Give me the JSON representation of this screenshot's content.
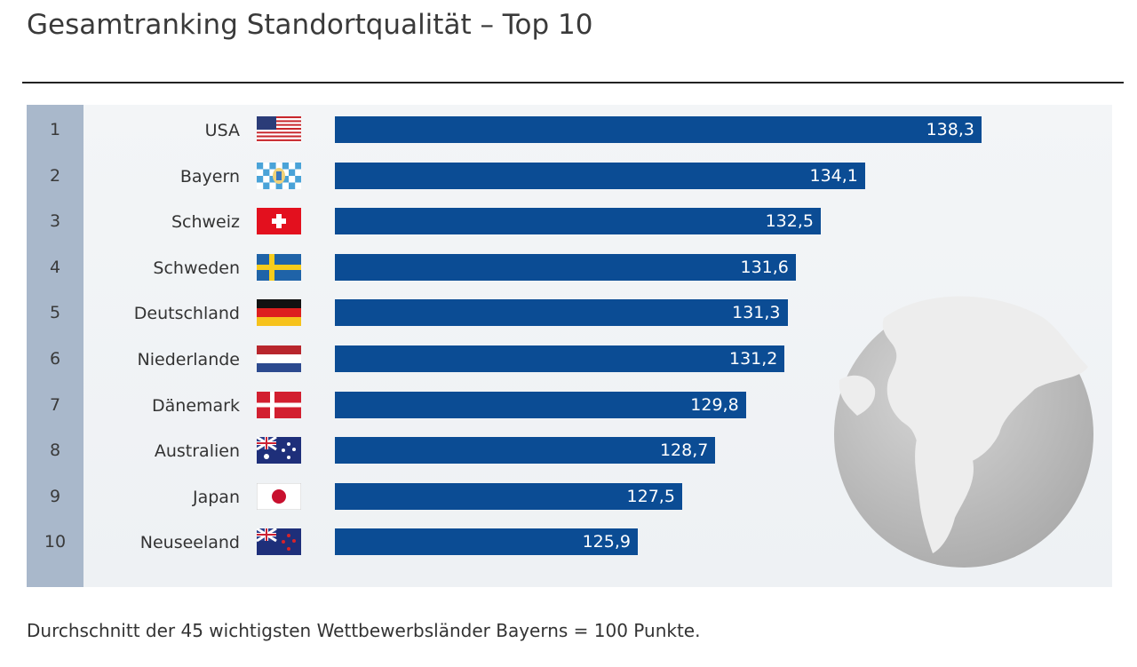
{
  "title": "Gesamtranking Standortqualität – Top 10",
  "footnote": "Durchschnitt der 45 wichtigsten Wettbewerbsländer Bayerns = 100 Punkte.",
  "colors": {
    "bar": "#0b4c94",
    "rank_column": "#a9b8cb",
    "panel": "#f1f3f6"
  },
  "chart_data": {
    "type": "bar",
    "orientation": "horizontal",
    "ranks": [
      "1",
      "2",
      "3",
      "4",
      "5",
      "6",
      "7",
      "8",
      "9",
      "10"
    ],
    "categories": [
      "USA",
      "Bayern",
      "Schweiz",
      "Schweden",
      "Deutschland",
      "Niederlande",
      "Dänemark",
      "Australien",
      "Japan",
      "Neuseeland"
    ],
    "values": [
      138.3,
      134.1,
      132.5,
      131.6,
      131.3,
      131.2,
      129.8,
      128.7,
      127.5,
      125.9
    ],
    "value_labels": [
      "138,3",
      "134,1",
      "132,5",
      "131,6",
      "131,3",
      "131,2",
      "129,8",
      "128,7",
      "127,5",
      "125,9"
    ],
    "flags": [
      "us-flag",
      "bavaria-flag",
      "switzerland-flag",
      "sweden-flag",
      "germany-flag",
      "netherlands-flag",
      "denmark-flag",
      "australia-flag",
      "japan-flag",
      "new-zealand-flag"
    ],
    "grid": false,
    "legend": "none"
  }
}
